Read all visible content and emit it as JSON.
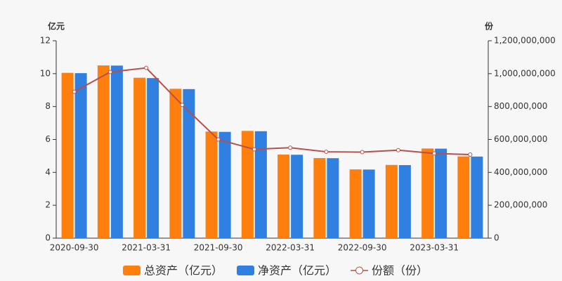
{
  "chart_data": {
    "type": "bar-line",
    "y_label": "亿元",
    "y2_label": "份",
    "categories": [
      "2020-09-30",
      null,
      "2021-03-31",
      null,
      "2021-09-30",
      null,
      "2022-03-31",
      null,
      "2022-09-30",
      null,
      "2023-03-31",
      null
    ],
    "series": [
      {
        "name": "总资产（亿元）",
        "type": "bar",
        "color": "#ff7f0e",
        "values": [
          10.05,
          10.5,
          9.75,
          9.08,
          6.48,
          6.52,
          5.08,
          4.87,
          4.18,
          4.45,
          5.45,
          4.97
        ]
      },
      {
        "name": "净资产（亿元）",
        "type": "bar",
        "color": "#2f80e0",
        "values": [
          10.03,
          10.49,
          9.73,
          9.06,
          6.46,
          6.5,
          5.07,
          4.86,
          4.17,
          4.44,
          5.44,
          4.96
        ]
      },
      {
        "name": "份额（份）",
        "type": "line",
        "axis": "y2",
        "color": "#b5504b",
        "values": [
          890000000,
          1010000000,
          1035000000,
          810000000,
          600000000,
          540000000,
          550000000,
          525000000,
          523000000,
          535000000,
          515000000,
          508000000
        ]
      }
    ],
    "ylim": [
      0,
      12
    ],
    "yticks": [
      0,
      2,
      4,
      6,
      8,
      10,
      12
    ],
    "y2lim": [
      0,
      1200000000
    ],
    "y2ticks": [
      0,
      {
        "value": 200000000,
        "label": "200,000,000"
      },
      {
        "value": 400000000,
        "label": "400,000,000"
      },
      {
        "value": 600000000,
        "label": "600,000,000"
      },
      {
        "value": 800000000,
        "label": "800,000,000"
      },
      {
        "value": 1000000000,
        "label": "1,000,000,000"
      },
      {
        "value": 1200000000,
        "label": "1,200,000,000"
      }
    ]
  }
}
